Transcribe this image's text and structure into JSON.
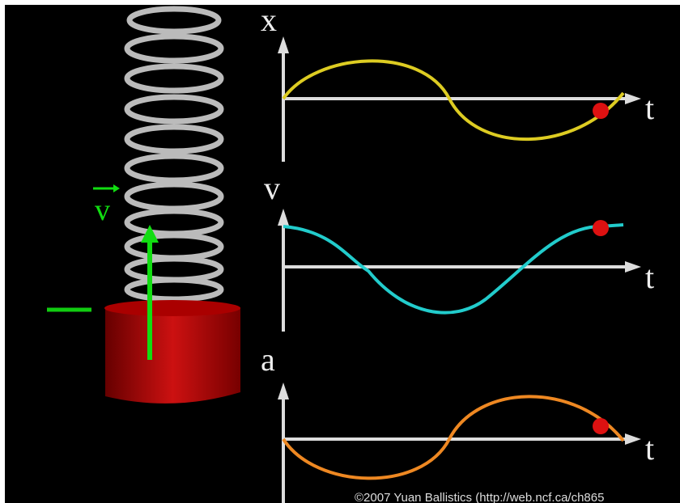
{
  "graphs": [
    {
      "label": "x",
      "time_label": "t"
    },
    {
      "label": "v",
      "time_label": "t"
    },
    {
      "label": "a",
      "time_label": "t"
    }
  ],
  "velocity_vector_label": "v",
  "copyright": "©2007 Yuan Ballistics (http://web.ncf.ca/ch865"
}
